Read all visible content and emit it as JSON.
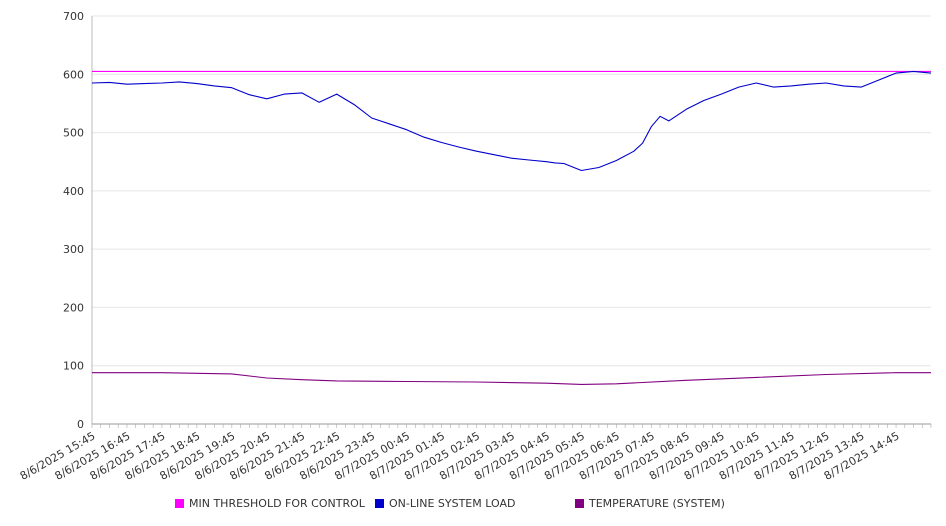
{
  "chart_data": {
    "type": "line",
    "title": "",
    "xlabel": "",
    "ylabel": "",
    "ylim": [
      0,
      700
    ],
    "yticks": [
      0,
      100,
      200,
      300,
      400,
      500,
      600,
      700
    ],
    "grid": "horizontal",
    "legend_position": "bottom",
    "x_start": "8/6/2025 15:45",
    "x_end": "8/7/2025 15:45",
    "x_tick_labels": [
      "8/6/2025 15:45",
      "8/6/2025 16:45",
      "8/6/2025 17:45",
      "8/6/2025 18:45",
      "8/6/2025 19:45",
      "8/6/2025 20:45",
      "8/6/2025 21:45",
      "8/6/2025 22:45",
      "8/6/2025 23:45",
      "8/7/2025 00:45",
      "8/7/2025 01:45",
      "8/7/2025 02:45",
      "8/7/2025 03:45",
      "8/7/2025 04:45",
      "8/7/2025 05:45",
      "8/7/2025 06:45",
      "8/7/2025 07:45",
      "8/7/2025 08:45",
      "8/7/2025 09:45",
      "8/7/2025 10:45",
      "8/7/2025 11:45",
      "8/7/2025 12:45",
      "8/7/2025 13:45",
      "8/7/2025 14:45"
    ],
    "series": [
      {
        "name": "MIN THRESHOLD FOR CONTROL",
        "color": "#ff00ff",
        "x": [
          "8/6/2025 15:45",
          "8/7/2025 15:45"
        ],
        "values": [
          605,
          605
        ]
      },
      {
        "name": "ON-LINE SYSTEM LOAD",
        "color": "#0000cc",
        "x": [
          "8/6/2025 15:45",
          "8/6/2025 16:15",
          "8/6/2025 16:45",
          "8/6/2025 17:15",
          "8/6/2025 17:45",
          "8/6/2025 18:15",
          "8/6/2025 18:45",
          "8/6/2025 19:15",
          "8/6/2025 19:45",
          "8/6/2025 20:15",
          "8/6/2025 20:45",
          "8/6/2025 21:15",
          "8/6/2025 21:45",
          "8/6/2025 22:15",
          "8/6/2025 22:45",
          "8/6/2025 23:15",
          "8/6/2025 23:45",
          "8/7/2025 00:15",
          "8/7/2025 00:45",
          "8/7/2025 01:15",
          "8/7/2025 01:45",
          "8/7/2025 02:15",
          "8/7/2025 02:45",
          "8/7/2025 03:15",
          "8/7/2025 03:45",
          "8/7/2025 04:15",
          "8/7/2025 04:45",
          "8/7/2025 05:00",
          "8/7/2025 05:15",
          "8/7/2025 05:45",
          "8/7/2025 06:15",
          "8/7/2025 06:45",
          "8/7/2025 07:15",
          "8/7/2025 07:30",
          "8/7/2025 07:45",
          "8/7/2025 08:00",
          "8/7/2025 08:15",
          "8/7/2025 08:45",
          "8/7/2025 09:15",
          "8/7/2025 09:45",
          "8/7/2025 10:15",
          "8/7/2025 10:45",
          "8/7/2025 11:15",
          "8/7/2025 11:45",
          "8/7/2025 12:15",
          "8/7/2025 12:45",
          "8/7/2025 13:15",
          "8/7/2025 13:45",
          "8/7/2025 14:15",
          "8/7/2025 14:45",
          "8/7/2025 15:15",
          "8/7/2025 15:45"
        ],
        "values": [
          585,
          586,
          583,
          584,
          585,
          587,
          584,
          580,
          577,
          565,
          558,
          566,
          568,
          552,
          566,
          548,
          525,
          515,
          505,
          492,
          483,
          475,
          468,
          462,
          456,
          453,
          450,
          448,
          447,
          435,
          440,
          452,
          468,
          482,
          510,
          528,
          520,
          540,
          555,
          566,
          578,
          585,
          578,
          580,
          583,
          585,
          580,
          578,
          590,
          602,
          605,
          602
        ]
      },
      {
        "name": "TEMPERATURE (SYSTEM)",
        "color": "#800080",
        "x": [
          "8/6/2025 15:45",
          "8/6/2025 17:45",
          "8/6/2025 19:45",
          "8/6/2025 20:45",
          "8/6/2025 21:45",
          "8/6/2025 22:45",
          "8/7/2025 00:45",
          "8/7/2025 02:45",
          "8/7/2025 04:45",
          "8/7/2025 05:45",
          "8/7/2025 06:45",
          "8/7/2025 08:45",
          "8/7/2025 10:45",
          "8/7/2025 12:45",
          "8/7/2025 14:45",
          "8/7/2025 15:45"
        ],
        "values": [
          88,
          88,
          86,
          79,
          76,
          74,
          73,
          72,
          70,
          68,
          69,
          75,
          80,
          85,
          88,
          88
        ]
      }
    ]
  },
  "legend": {
    "items": [
      {
        "label": "MIN THRESHOLD FOR CONTROL",
        "color": "#ff00ff"
      },
      {
        "label": "ON-LINE SYSTEM LOAD",
        "color": "#0000cc"
      },
      {
        "label": "TEMPERATURE (SYSTEM)",
        "color": "#800080"
      }
    ]
  }
}
